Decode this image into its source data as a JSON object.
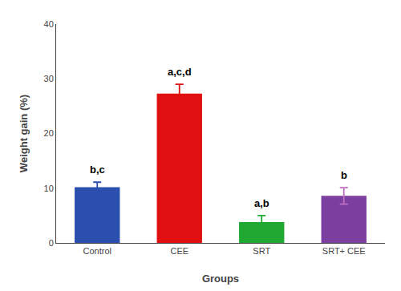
{
  "chart_data": {
    "type": "bar",
    "categories": [
      "Control",
      "CEE",
      "SRT",
      "SRT+ CEE"
    ],
    "values": [
      10.2,
      27.3,
      3.8,
      8.6
    ],
    "errors": [
      0.9,
      1.7,
      1.2,
      1.5
    ],
    "colors": [
      "#2b4faf",
      "#e01010",
      "#1fa832",
      "#7b3fa0"
    ],
    "error_colors": [
      "#2b4faf",
      "#e01010",
      "#1fa832",
      "#c070c0"
    ],
    "annotations": [
      "b,c",
      "a,c,d",
      "a,b",
      "b"
    ],
    "xlabel": "Groups",
    "ylabel": "Weight gain (%)",
    "ylim": [
      0,
      40
    ],
    "yticks": [
      0,
      10,
      20,
      30,
      40
    ],
    "grid": false
  }
}
